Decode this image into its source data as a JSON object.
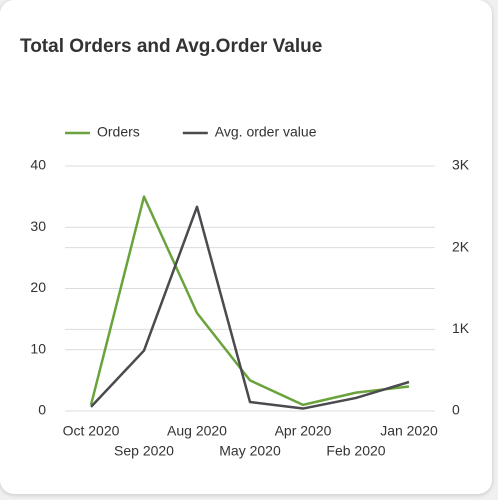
{
  "chart_data": {
    "type": "line",
    "title": "Total Orders and Avg.Order Value",
    "categories": [
      "Oct 2020",
      "Sep 2020",
      "Aug 2020",
      "May 2020",
      "Apr 2020",
      "Feb 2020",
      "Jan 2020"
    ],
    "series": [
      {
        "name": "Orders",
        "color": "#6aa33c",
        "values": [
          1,
          35,
          16,
          5,
          1,
          3,
          4
        ]
      },
      {
        "name": "Avg. order value",
        "color": "#4a4a4f",
        "axis": "y2",
        "values": [
          50,
          740,
          2500,
          110,
          30,
          160,
          355
        ]
      }
    ],
    "ylim": [
      0,
      40
    ],
    "yticks": [
      0,
      10,
      20,
      30,
      40
    ],
    "y2lim": [
      0,
      3000
    ],
    "y2ticks": [
      0,
      {
        "value": 1000,
        "label": "1K"
      },
      {
        "value": 2000,
        "label": "2K"
      },
      {
        "value": 3000,
        "label": "3K"
      }
    ],
    "grid": true,
    "legend": "top"
  }
}
